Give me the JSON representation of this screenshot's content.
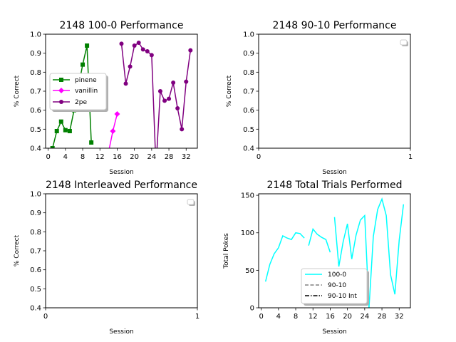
{
  "chart_data": [
    {
      "type": "line",
      "title": "2148 100-0 Performance",
      "xlabel": "Session",
      "ylabel": "% Correct",
      "xlim": [
        -0.6,
        34.6
      ],
      "ylim": [
        0.4,
        1.0
      ],
      "xticks": [
        0,
        4,
        8,
        12,
        16,
        20,
        24,
        28,
        32
      ],
      "yticks": [
        0.4,
        0.5,
        0.6,
        0.7,
        0.8,
        0.9,
        1.0
      ],
      "grid": false,
      "legend_position": "center-left",
      "series": [
        {
          "name": "pinene",
          "color": "#008000",
          "marker": "square",
          "segments": [
            [
              [
                1,
                0.4
              ],
              [
                2,
                0.49
              ],
              [
                3,
                0.54
              ],
              [
                4,
                0.495
              ],
              [
                5,
                0.49
              ],
              [
                6,
                0.6
              ],
              [
                8,
                0.84
              ],
              [
                9,
                0.94
              ],
              [
                10,
                0.43
              ]
            ]
          ]
        },
        {
          "name": "vanillin",
          "color": "#ff00ff",
          "marker": "diamond",
          "segments": [
            [
              [
                14,
                0.38
              ],
              [
                15,
                0.49
              ],
              [
                16,
                0.58
              ]
            ]
          ]
        },
        {
          "name": "2pe",
          "color": "#800080",
          "marker": "circle",
          "segments": [
            [
              [
                17,
                0.95
              ],
              [
                18,
                0.74
              ],
              [
                19,
                0.83
              ],
              [
                20,
                0.94
              ],
              [
                21,
                0.955
              ],
              [
                22,
                0.92
              ],
              [
                23,
                0.91
              ],
              [
                24,
                0.89
              ],
              [
                25,
                0.3
              ]
            ],
            [
              [
                25,
                0.3
              ],
              [
                26,
                0.7
              ],
              [
                27,
                0.65
              ],
              [
                28,
                0.66
              ],
              [
                29,
                0.745
              ],
              [
                30,
                0.61
              ],
              [
                31,
                0.5
              ],
              [
                32,
                0.75
              ],
              [
                33,
                0.915
              ]
            ]
          ]
        }
      ]
    },
    {
      "type": "line",
      "title": "2148 90-10 Performance",
      "xlabel": "Session",
      "ylabel": "% Correct",
      "xlim": [
        0,
        1
      ],
      "ylim": [
        0.4,
        1.0
      ],
      "xticks": [
        0,
        1
      ],
      "yticks": [
        0.4,
        0.5,
        0.6,
        0.7,
        0.8,
        0.9,
        1.0
      ],
      "grid": false,
      "legend_position": "top-right",
      "series": []
    },
    {
      "type": "line",
      "title": "2148 Interleaved Performance",
      "xlabel": "Session",
      "ylabel": "% Correct",
      "xlim": [
        0,
        1
      ],
      "ylim": [
        0.4,
        1.0
      ],
      "xticks": [
        0,
        1
      ],
      "yticks": [
        0.4,
        0.5,
        0.6,
        0.7,
        0.8,
        0.9,
        1.0
      ],
      "grid": false,
      "legend_position": "top-right",
      "series": []
    },
    {
      "type": "line",
      "title": "2148 Total Trials Performed",
      "xlabel": "Session",
      "ylabel": "Total Pokes",
      "xlim": [
        -0.6,
        34.6
      ],
      "ylim": [
        0,
        152
      ],
      "xticks": [
        0,
        4,
        8,
        12,
        16,
        20,
        24,
        28,
        32
      ],
      "yticks": [
        0,
        50,
        100,
        150
      ],
      "grid": false,
      "legend_position": "bottom-center",
      "series": [
        {
          "name": "100-0",
          "color": "#00ffff",
          "dash": "solid",
          "segments": [
            [
              [
                1,
                35
              ],
              [
                2,
                58
              ],
              [
                3,
                72
              ],
              [
                4,
                80
              ],
              [
                5,
                96
              ],
              [
                6,
                93
              ],
              [
                7,
                91
              ],
              [
                8,
                100
              ],
              [
                9,
                99
              ],
              [
                10,
                93
              ]
            ],
            [
              [
                11,
                83
              ],
              [
                12,
                105
              ],
              [
                13,
                98
              ],
              [
                14,
                94
              ],
              [
                15,
                91
              ],
              [
                16,
                74
              ]
            ],
            [
              [
                17,
                121
              ],
              [
                18,
                55
              ],
              [
                19,
                88
              ],
              [
                20,
                112
              ],
              [
                21,
                65
              ],
              [
                22,
                97
              ],
              [
                23,
                117
              ],
              [
                24,
                123
              ],
              [
                25,
                0
              ]
            ],
            [
              [
                25,
                0
              ],
              [
                26,
                95
              ],
              [
                27,
                131
              ],
              [
                28,
                145
              ],
              [
                29,
                123
              ],
              [
                30,
                44
              ],
              [
                31,
                18
              ],
              [
                32,
                90
              ],
              [
                33,
                138
              ]
            ]
          ]
        },
        {
          "name": "90-10",
          "color": "#808080",
          "dash": "dashed",
          "segments": []
        },
        {
          "name": "90-10 Int",
          "color": "#000000",
          "dash": "dashdot",
          "segments": []
        }
      ]
    }
  ]
}
